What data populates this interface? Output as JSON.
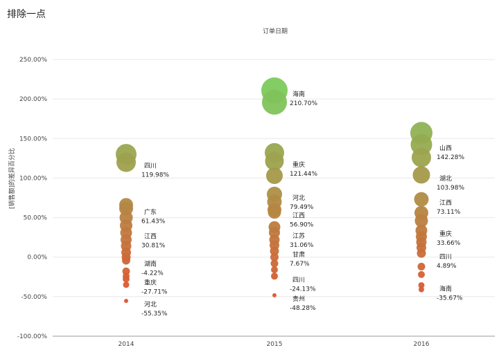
{
  "page": {
    "title": "排除一点"
  },
  "chart_data": {
    "type": "scatter",
    "title": "订单日期",
    "xlabel": "",
    "ylabel": "[销售额]的差异百分比",
    "categories": [
      "2014",
      "2015",
      "2016"
    ],
    "ylim": [
      -100,
      250
    ],
    "yticks": [
      {
        "value": 250,
        "label": "250.00%"
      },
      {
        "value": 200,
        "label": "200.00%"
      },
      {
        "value": 150,
        "label": "150.00%"
      },
      {
        "value": 100,
        "label": "100.00%"
      },
      {
        "value": 50,
        "label": "50.00%"
      },
      {
        "value": 0,
        "label": "0.00%"
      },
      {
        "value": -50,
        "label": "-50.00%"
      },
      {
        "value": -100,
        "label": "-100.00%"
      }
    ],
    "color_low": "#e2502e",
    "color_high": "#7acc5e",
    "series": [
      {
        "name": "2014",
        "points": [
          {
            "value": 130,
            "size": 15
          },
          {
            "value": 119.98,
            "size": 14
          },
          {
            "value": 66,
            "size": 10
          },
          {
            "value": 61.43,
            "size": 10
          },
          {
            "value": 50,
            "size": 9.5
          },
          {
            "value": 40,
            "size": 9
          },
          {
            "value": 30.81,
            "size": 8.5
          },
          {
            "value": 22,
            "size": 8
          },
          {
            "value": 14,
            "size": 7.5
          },
          {
            "value": 6,
            "size": 7
          },
          {
            "value": 0,
            "size": 6.5
          },
          {
            "value": -4.22,
            "size": 6
          },
          {
            "value": -18,
            "size": 5.5
          },
          {
            "value": -24,
            "size": 5
          },
          {
            "value": -27.71,
            "size": 5
          },
          {
            "value": -35,
            "size": 4.5
          },
          {
            "value": -55.35,
            "size": 3
          }
        ],
        "labels": [
          {
            "value": 119.98,
            "name": "四川",
            "pct": "119.98%"
          },
          {
            "value": 61.43,
            "name": "广东",
            "pct": "61.43%"
          },
          {
            "value": 30.81,
            "name": "江西",
            "pct": "30.81%"
          },
          {
            "value": -4.22,
            "name": "湖南",
            "pct": "-4.22%"
          },
          {
            "value": -27.71,
            "name": "重庆",
            "pct": "-27.71%"
          },
          {
            "value": -55.35,
            "name": "河北",
            "pct": "-55.35%"
          }
        ]
      },
      {
        "name": "2015",
        "points": [
          {
            "value": 210.7,
            "size": 19
          },
          {
            "value": 196,
            "size": 18
          },
          {
            "value": 132,
            "size": 14
          },
          {
            "value": 121.44,
            "size": 13.5
          },
          {
            "value": 103,
            "size": 12
          },
          {
            "value": 79.49,
            "size": 11
          },
          {
            "value": 70,
            "size": 10.5
          },
          {
            "value": 60,
            "size": 10
          },
          {
            "value": 56.9,
            "size": 9.5
          },
          {
            "value": 38,
            "size": 8.5
          },
          {
            "value": 31.06,
            "size": 8
          },
          {
            "value": 22,
            "size": 7.5
          },
          {
            "value": 15,
            "size": 7
          },
          {
            "value": 7.67,
            "size": 6.5
          },
          {
            "value": 0,
            "size": 6
          },
          {
            "value": -8,
            "size": 5.5
          },
          {
            "value": -16,
            "size": 5
          },
          {
            "value": -24.13,
            "size": 5
          },
          {
            "value": -48.28,
            "size": 3
          }
        ],
        "labels": [
          {
            "value": 210.7,
            "name": "海南",
            "pct": "210.70%"
          },
          {
            "value": 121.44,
            "name": "重庆",
            "pct": "121.44%"
          },
          {
            "value": 79.49,
            "name": "河北",
            "pct": "79.49%"
          },
          {
            "value": 56.9,
            "name": "江西",
            "pct": "56.90%"
          },
          {
            "value": 31.06,
            "name": "江苏",
            "pct": "31.06%"
          },
          {
            "value": 7.67,
            "name": "甘肃",
            "pct": "7.67%"
          },
          {
            "value": -24.13,
            "name": "四川",
            "pct": "-24.13%"
          },
          {
            "value": -48.28,
            "name": "贵州",
            "pct": "-48.28%"
          }
        ]
      },
      {
        "name": "2016",
        "points": [
          {
            "value": 157,
            "size": 16
          },
          {
            "value": 142.28,
            "size": 15.5
          },
          {
            "value": 126,
            "size": 14
          },
          {
            "value": 103.98,
            "size": 12.5
          },
          {
            "value": 73.11,
            "size": 10.5
          },
          {
            "value": 56,
            "size": 10
          },
          {
            "value": 46,
            "size": 9.5
          },
          {
            "value": 33.66,
            "size": 8.5
          },
          {
            "value": 26,
            "size": 8
          },
          {
            "value": 19,
            "size": 7.5
          },
          {
            "value": 12,
            "size": 7
          },
          {
            "value": 4.89,
            "size": 6.5
          },
          {
            "value": -12,
            "size": 5.5
          },
          {
            "value": -22,
            "size": 5
          },
          {
            "value": -35.67,
            "size": 4.5
          },
          {
            "value": -41,
            "size": 4
          }
        ],
        "labels": [
          {
            "value": 142.28,
            "name": "山西",
            "pct": "142.28%"
          },
          {
            "value": 103.98,
            "name": "湖北",
            "pct": "103.98%"
          },
          {
            "value": 73.11,
            "name": "江西",
            "pct": "73.11%"
          },
          {
            "value": 33.66,
            "name": "重庆",
            "pct": "33.66%"
          },
          {
            "value": 4.89,
            "name": "四川",
            "pct": "4.89%"
          },
          {
            "value": -35.67,
            "name": "海南",
            "pct": "-35.67%"
          }
        ]
      }
    ]
  }
}
